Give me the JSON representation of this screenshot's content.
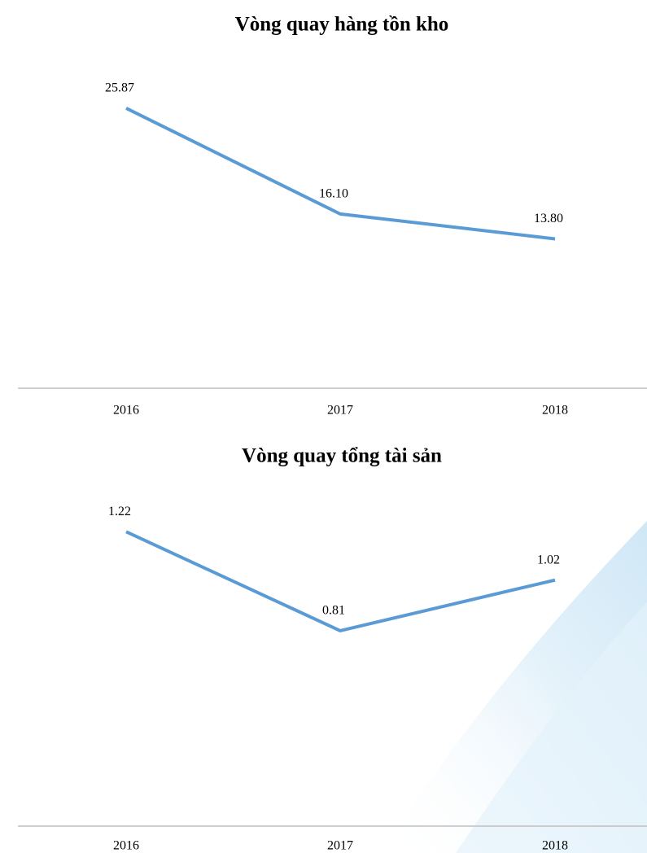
{
  "chart_data": [
    {
      "type": "line",
      "title": "Vòng quay hàng tồn kho",
      "categories": [
        "2016",
        "2017",
        "2018"
      ],
      "values": [
        25.87,
        16.1,
        13.8
      ],
      "value_labels": [
        "25.87",
        "16.10",
        "13.80"
      ],
      "color": "#5b9bd5",
      "ylim": [
        0,
        30
      ]
    },
    {
      "type": "line",
      "title": "Vòng quay tổng tài sản",
      "categories": [
        "2016",
        "2017",
        "2018"
      ],
      "values": [
        1.22,
        0.81,
        1.02
      ],
      "color": "#5b9bd5",
      "ylim": [
        0,
        1.4
      ]
    }
  ]
}
